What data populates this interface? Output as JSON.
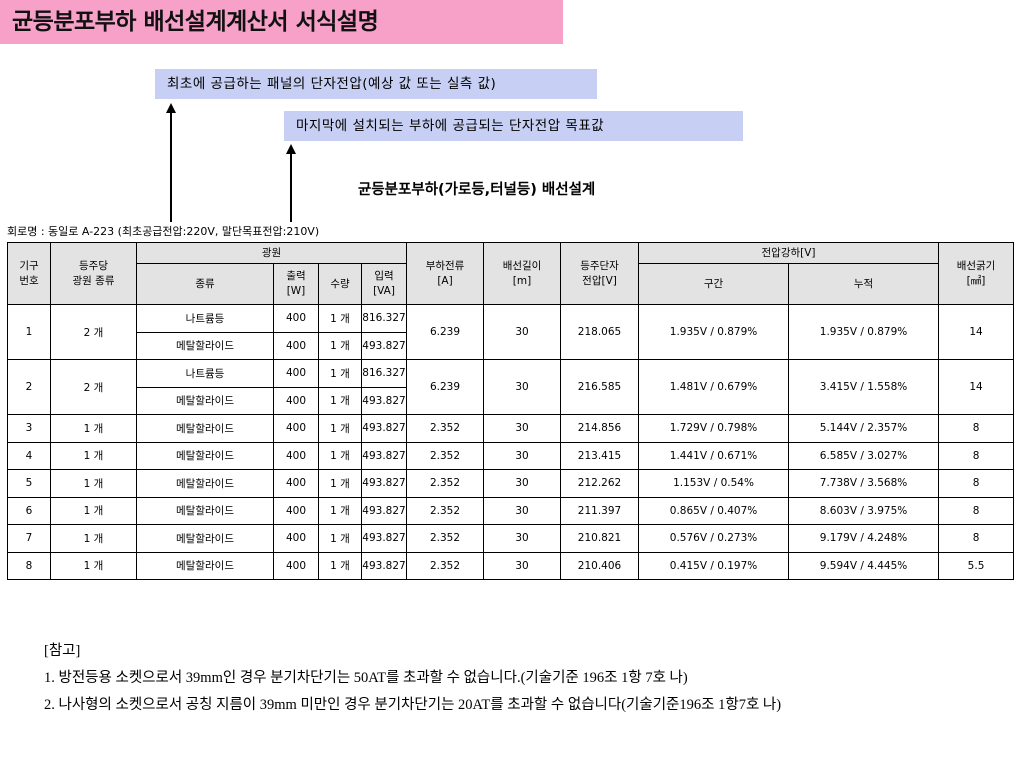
{
  "title": "균등분포부하 배선설계계산서 서식설명",
  "callouts": {
    "first": "최초에 공급하는 패널의 단자전압(예상 값 또는 실측 값)",
    "second": "마지막에 설치되는 부하에 공급되는 단자전압 목표값"
  },
  "table_title": "균등분포부하(가로등,터널등) 배선설계",
  "circuit_label": "회로명 : 동일로 A-223 (최초공급전압:220V, 말단목표전압:210V)",
  "headers": {
    "no": "기구\n번호",
    "per_pole": "등주당\n광원 종류",
    "source": "광원",
    "type": "종류",
    "output": "출력\n[W]",
    "qty": "수량",
    "input": "입력\n[VA]",
    "current": "부하전류\n[A]",
    "length": "배선길이\n[m]",
    "terminal": "등주단자\n전압[V]",
    "drop": "전압강하[V]",
    "section": "구간",
    "cumulative": "누적",
    "wire": "배선굵기\n[㎟]"
  },
  "rows": [
    {
      "no": "1",
      "per_pole": "2 개",
      "lamps": [
        {
          "type": "나트륨등",
          "output": "400",
          "qty": "1 개",
          "input": "816.327"
        },
        {
          "type": "메탈할라이드",
          "output": "400",
          "qty": "1 개",
          "input": "493.827"
        }
      ],
      "current": "6.239",
      "length": "30",
      "terminal": "218.065",
      "section": "1.935V / 0.879%",
      "cumulative": "1.935V / 0.879%",
      "wire": "14"
    },
    {
      "no": "2",
      "per_pole": "2 개",
      "lamps": [
        {
          "type": "나트륨등",
          "output": "400",
          "qty": "1 개",
          "input": "816.327"
        },
        {
          "type": "메탈할라이드",
          "output": "400",
          "qty": "1 개",
          "input": "493.827"
        }
      ],
      "current": "6.239",
      "length": "30",
      "terminal": "216.585",
      "section": "1.481V / 0.679%",
      "cumulative": "3.415V / 1.558%",
      "wire": "14"
    },
    {
      "no": "3",
      "per_pole": "1 개",
      "lamps": [
        {
          "type": "메탈할라이드",
          "output": "400",
          "qty": "1 개",
          "input": "493.827"
        }
      ],
      "current": "2.352",
      "length": "30",
      "terminal": "214.856",
      "section": "1.729V / 0.798%",
      "cumulative": "5.144V / 2.357%",
      "wire": "8"
    },
    {
      "no": "4",
      "per_pole": "1 개",
      "lamps": [
        {
          "type": "메탈할라이드",
          "output": "400",
          "qty": "1 개",
          "input": "493.827"
        }
      ],
      "current": "2.352",
      "length": "30",
      "terminal": "213.415",
      "section": "1.441V / 0.671%",
      "cumulative": "6.585V / 3.027%",
      "wire": "8"
    },
    {
      "no": "5",
      "per_pole": "1 개",
      "lamps": [
        {
          "type": "메탈할라이드",
          "output": "400",
          "qty": "1 개",
          "input": "493.827"
        }
      ],
      "current": "2.352",
      "length": "30",
      "terminal": "212.262",
      "section": "1.153V / 0.54%",
      "cumulative": "7.738V / 3.568%",
      "wire": "8"
    },
    {
      "no": "6",
      "per_pole": "1 개",
      "lamps": [
        {
          "type": "메탈할라이드",
          "output": "400",
          "qty": "1 개",
          "input": "493.827"
        }
      ],
      "current": "2.352",
      "length": "30",
      "terminal": "211.397",
      "section": "0.865V / 0.407%",
      "cumulative": "8.603V / 3.975%",
      "wire": "8"
    },
    {
      "no": "7",
      "per_pole": "1 개",
      "lamps": [
        {
          "type": "메탈할라이드",
          "output": "400",
          "qty": "1 개",
          "input": "493.827"
        }
      ],
      "current": "2.352",
      "length": "30",
      "terminal": "210.821",
      "section": "0.576V / 0.273%",
      "cumulative": "9.179V / 4.248%",
      "wire": "8"
    },
    {
      "no": "8",
      "per_pole": "1 개",
      "lamps": [
        {
          "type": "메탈할라이드",
          "output": "400",
          "qty": "1 개",
          "input": "493.827"
        }
      ],
      "current": "2.352",
      "length": "30",
      "terminal": "210.406",
      "section": "0.415V / 0.197%",
      "cumulative": "9.594V / 4.445%",
      "wire": "5.5"
    }
  ],
  "notes": {
    "heading": "[참고]",
    "items": [
      "1. 방전등용 소켓으로서 39mm인 경우 분기차단기는 50AT를 초과할 수 없습니다.(기술기준 196조 1항 7호 나)",
      "2. 나사형의 소켓으로서 공칭 지름이 39mm 미만인 경우 분기차단기는 20AT를 초과할 수 없습니다(기술기준196조 1항7호 나)"
    ]
  }
}
